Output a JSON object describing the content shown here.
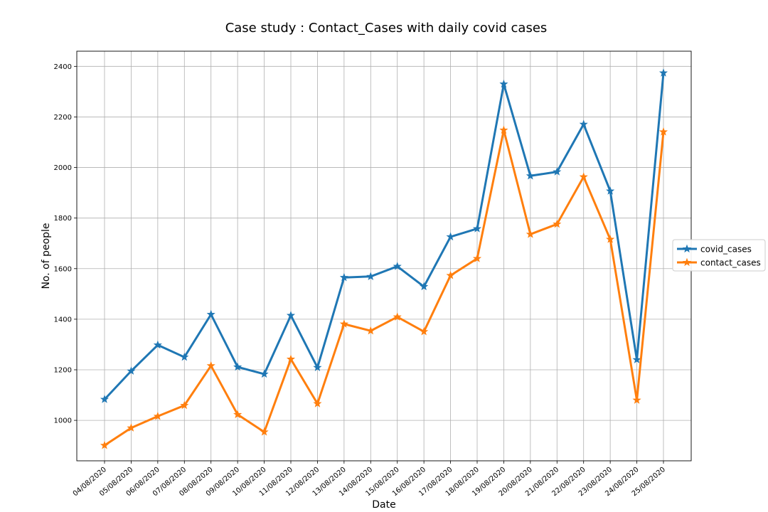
{
  "chart_data": {
    "type": "line",
    "title": "Case study : Contact_Cases with daily covid cases",
    "xlabel": "Date",
    "ylabel": "No. of people",
    "categories": [
      "04/08/2020",
      "05/08/2020",
      "06/08/2020",
      "07/08/2020",
      "08/08/2020",
      "09/08/2020",
      "10/08/2020",
      "11/08/2020",
      "12/08/2020",
      "13/08/2020",
      "14/08/2020",
      "15/08/2020",
      "16/08/2020",
      "17/08/2020",
      "18/08/2020",
      "19/08/2020",
      "20/08/2020",
      "21/08/2020",
      "22/08/2020",
      "23/08/2020",
      "24/08/2020",
      "25/08/2020"
    ],
    "ylim": [
      840,
      2460
    ],
    "yticks": [
      1000,
      1200,
      1400,
      1600,
      1800,
      2000,
      2200,
      2400
    ],
    "grid": true,
    "legend_position": "right",
    "series": [
      {
        "name": "covid_cases",
        "color": "#1f77b4",
        "marker": "star",
        "values": [
          1083,
          1195,
          1298,
          1250,
          1419,
          1211,
          1183,
          1415,
          1209,
          1565,
          1569,
          1609,
          1529,
          1726,
          1758,
          2330,
          1967,
          1983,
          2171,
          1907,
          1240,
          2374
        ]
      },
      {
        "name": "contact_cases",
        "color": "#ff7f0e",
        "marker": "star",
        "values": [
          901,
          970,
          1016,
          1059,
          1216,
          1023,
          954,
          1242,
          1066,
          1381,
          1354,
          1409,
          1351,
          1573,
          1640,
          2148,
          1736,
          1776,
          1963,
          1716,
          1080,
          2141
        ]
      }
    ]
  }
}
